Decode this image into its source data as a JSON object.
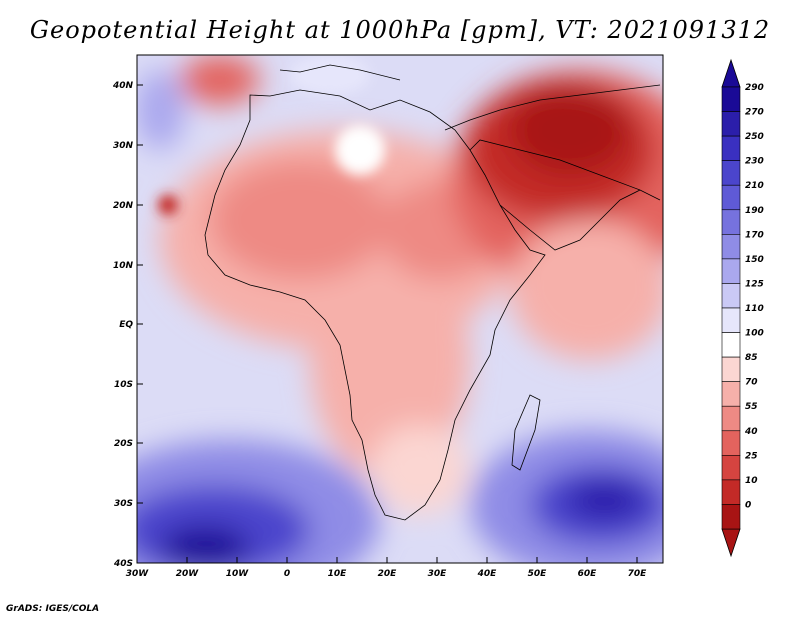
{
  "title": "Geopotential Height at 1000hPa [gpm], VT: 2021091312",
  "footer": "GrADS: IGES/COLA",
  "map": {
    "lat_labels": [
      "40N",
      "30N",
      "20N",
      "10N",
      "EQ",
      "10S",
      "20S",
      "30S",
      "40S"
    ],
    "lon_labels": [
      "30W",
      "20W",
      "10W",
      "0",
      "10E",
      "20E",
      "30E",
      "40E",
      "50E",
      "60E",
      "70E"
    ]
  },
  "colorbar": {
    "labels": [
      "290",
      "270",
      "250",
      "230",
      "210",
      "190",
      "170",
      "150",
      "125",
      "110",
      "100",
      "85",
      "70",
      "55",
      "40",
      "25",
      "10",
      "0"
    ],
    "colors_top_to_bottom": [
      "#1a0a96",
      "#2b1eaa",
      "#3a30c0",
      "#4b45cc",
      "#5f5ad6",
      "#7672de",
      "#8f8ce6",
      "#aaa8ee",
      "#cac9f5",
      "#e6e6fb",
      "#ffffff",
      "#fbd6d2",
      "#f6b0aa",
      "#ee8a84",
      "#e3635e",
      "#d54440",
      "#c32a27",
      "#a81414"
    ]
  }
}
